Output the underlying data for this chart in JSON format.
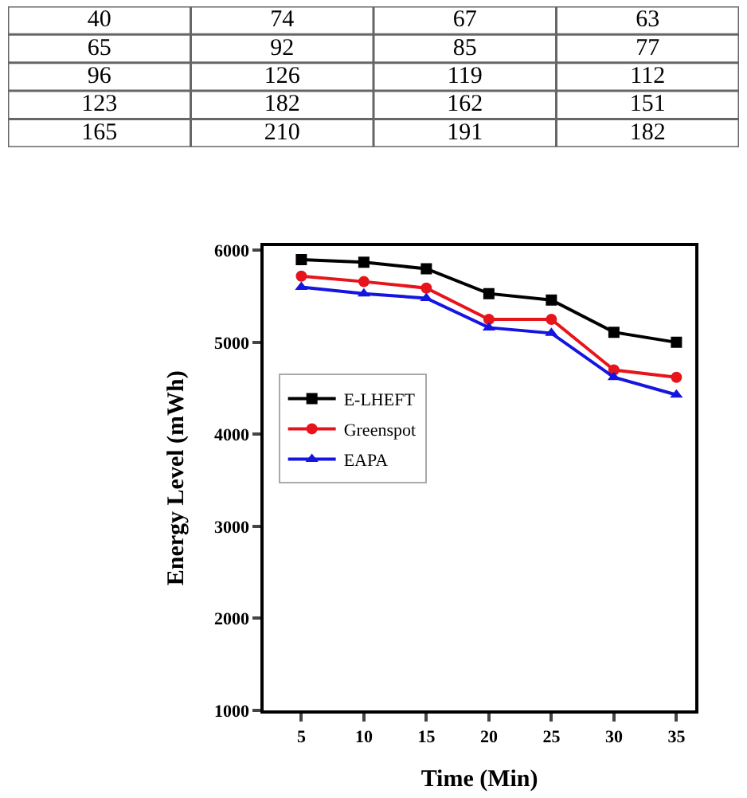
{
  "chart_data": [
    {
      "type": "other",
      "annotations": [
        "40",
        "74",
        "67",
        "63",
        "65",
        "92",
        "85",
        "77",
        "96",
        "126",
        "119",
        "112",
        "123",
        "182",
        "162",
        "151",
        "165",
        "210",
        "191",
        "182"
      ]
    },
    {
      "type": "line",
      "xlabel": "Time (Min)",
      "ylabel": "Energy Level (mWh)",
      "x": [
        5,
        10,
        15,
        20,
        25,
        30,
        35
      ],
      "xlim": [
        2,
        36.5
      ],
      "xticks": [
        5,
        10,
        15,
        20,
        25,
        30,
        35
      ],
      "ylim": [
        1000,
        6050
      ],
      "yticks": [
        1000,
        2000,
        3000,
        4000,
        5000,
        6000
      ],
      "legend": "left",
      "series": [
        {
          "name": "E-LHEFT",
          "color": "#000000",
          "marker": "square",
          "values": [
            5900,
            5870,
            5800,
            5530,
            5460,
            5110,
            5000
          ]
        },
        {
          "name": "Greenspot",
          "color": "#e8141c",
          "marker": "circle",
          "values": [
            5720,
            5660,
            5590,
            5250,
            5250,
            4700,
            4620
          ]
        },
        {
          "name": "EAPA",
          "color": "#1515e0",
          "marker": "triangle",
          "values": [
            5600,
            5530,
            5480,
            5160,
            5100,
            4620,
            4430
          ]
        }
      ]
    }
  ]
}
